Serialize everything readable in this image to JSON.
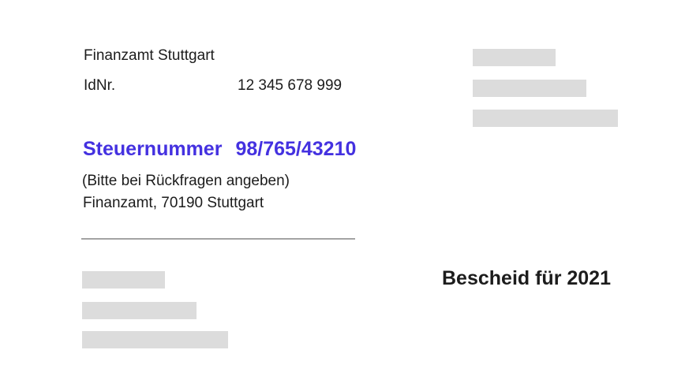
{
  "document": {
    "office_name": "Finanzamt Stuttgart",
    "id_row": {
      "label": "IdNr.",
      "value": "12 345 678 999"
    },
    "tax_number": {
      "label": "Steuernummer",
      "value": "98/765/43210",
      "note": "(Bitte bei Rückfragen angeben)",
      "office_address": "Finanzamt, 70190 Stuttgart"
    },
    "notice_title": "Bescheid für 2021"
  },
  "colors": {
    "accent_blue": "#4431e0",
    "redacted_gray": "#dcdcdc",
    "divider_gray": "#a3a3a3",
    "text_black": "#1c1c1c",
    "background": "#ffffff"
  }
}
